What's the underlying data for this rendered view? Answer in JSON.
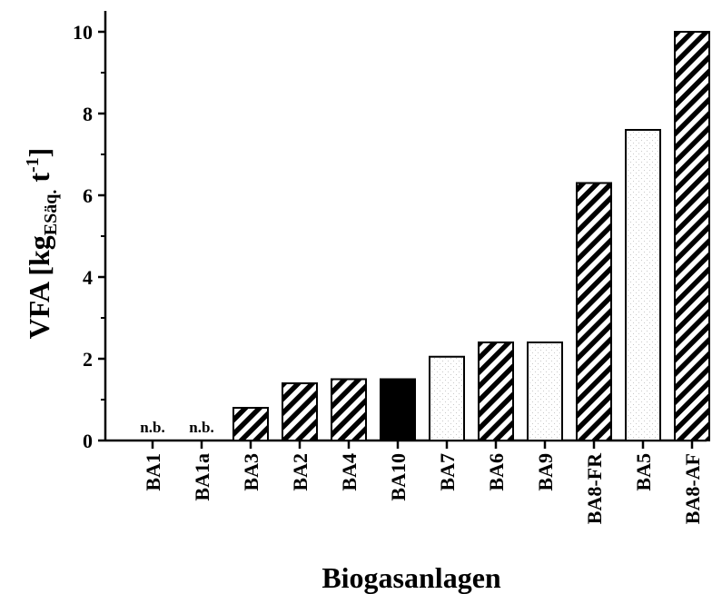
{
  "chart_data": {
    "type": "bar",
    "xlabel": "Biogasanlagen",
    "ylabel": {
      "main": "VFA [kg",
      "subscript": "ESäq.",
      "unit": " t",
      "superscript": "-1",
      "close": "]"
    },
    "ylim": [
      0,
      10
    ],
    "yticks": [
      "0",
      "2",
      "4",
      "6",
      "8",
      "10"
    ],
    "categories": [
      "BA1",
      "BA1a",
      "BA3",
      "BA2",
      "BA4",
      "BA10",
      "BA7",
      "BA6",
      "BA9",
      "BA8-FR",
      "BA5",
      "BA8-AF"
    ],
    "values": [
      null,
      null,
      0.8,
      1.4,
      1.5,
      1.5,
      2.05,
      2.4,
      2.4,
      6.3,
      7.6,
      10.0
    ],
    "fills": [
      "none",
      "none",
      "hatch",
      "hatch",
      "hatch",
      "solid",
      "dotted",
      "hatch",
      "dotted",
      "hatch",
      "dotted",
      "hatch"
    ],
    "value_labels": [
      "n.b.",
      "n.b.",
      "",
      "",
      "",
      "",
      "",
      "",
      "",
      "",
      "",
      ""
    ],
    "grid": false,
    "legend": "none",
    "colors": {
      "ink": "#000000",
      "background": "#ffffff",
      "dots": "#c8c8c8"
    }
  }
}
